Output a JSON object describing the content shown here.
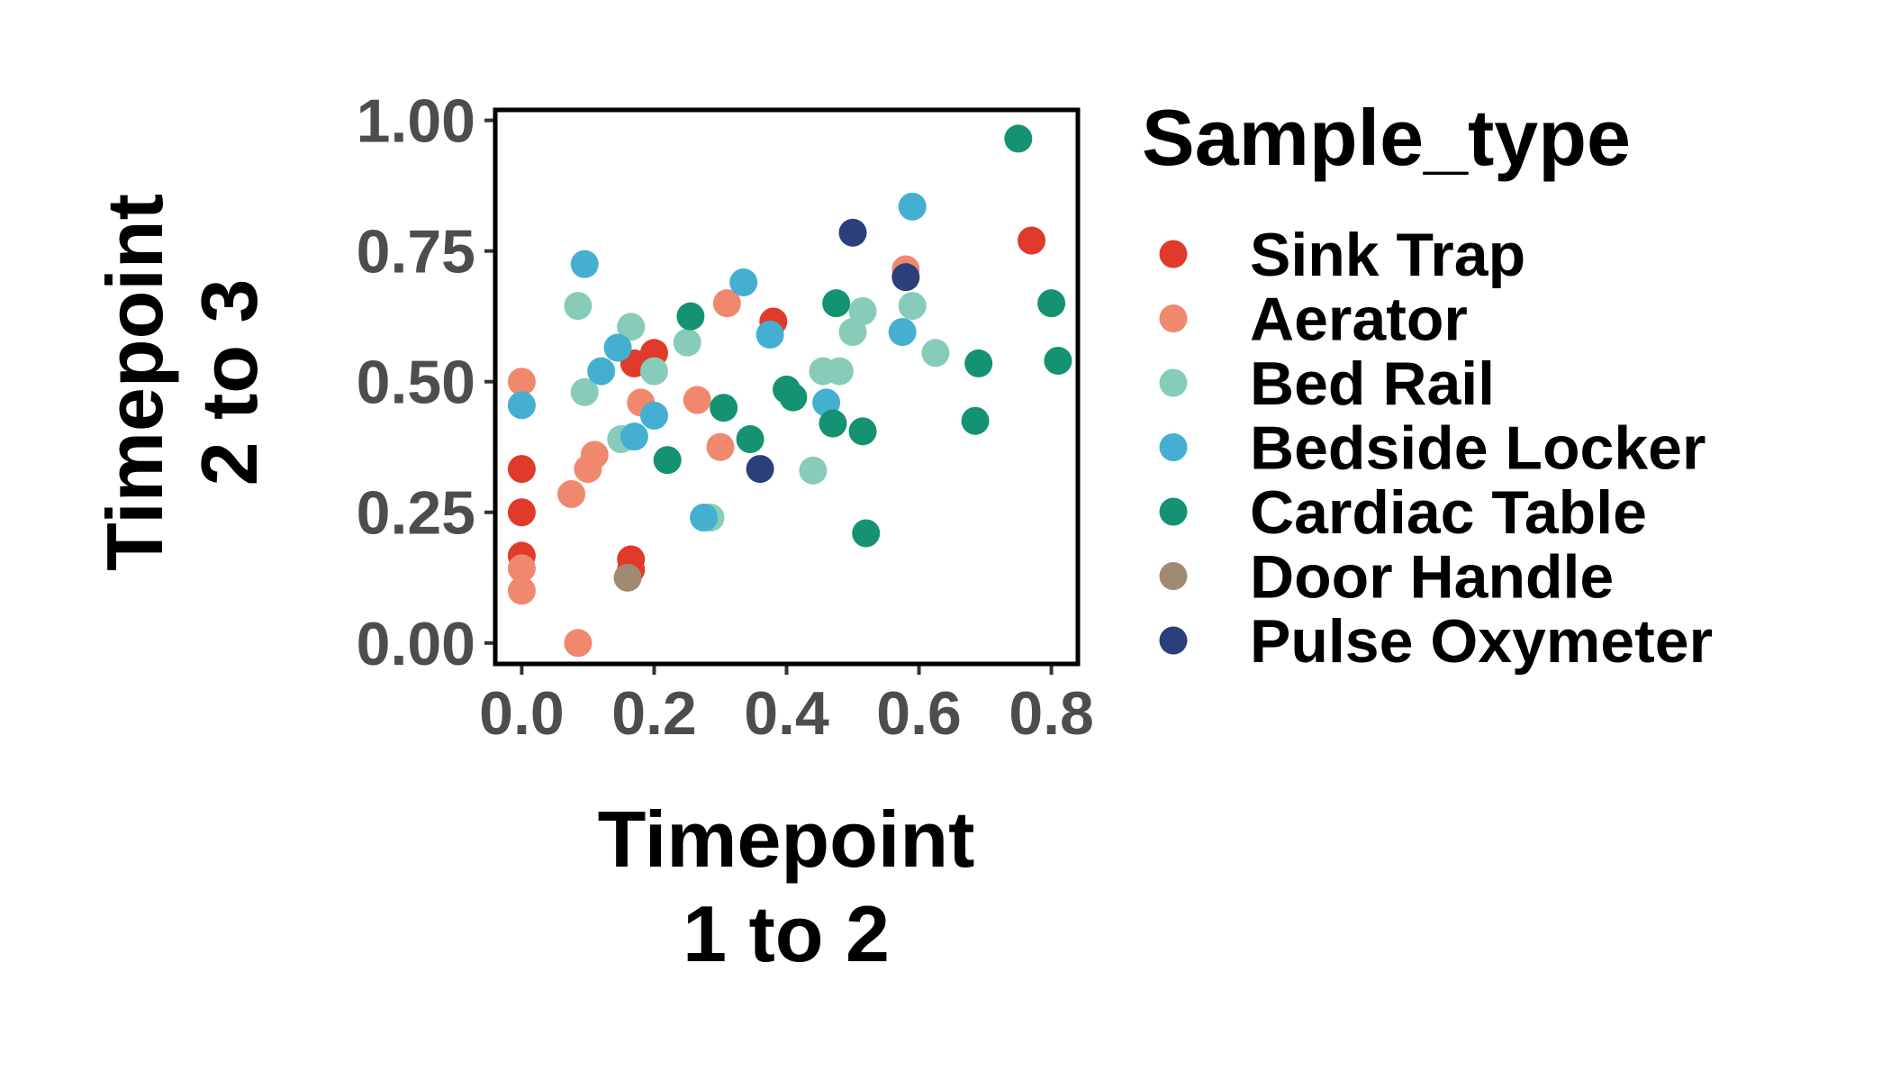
{
  "chart_data": {
    "type": "scatter",
    "title": "",
    "xlabel": [
      "Timepoint",
      "1 to 2"
    ],
    "ylabel": [
      "Timepoint",
      "2 to 3"
    ],
    "xlim": [
      -0.04,
      0.84
    ],
    "ylim": [
      -0.04,
      1.02
    ],
    "x_ticks": [
      0.0,
      0.2,
      0.4,
      0.6,
      0.8
    ],
    "x_tick_labels": [
      "0.0",
      "0.2",
      "0.4",
      "0.6",
      "0.8"
    ],
    "y_ticks": [
      0.0,
      0.25,
      0.5,
      0.75,
      1.0
    ],
    "y_tick_labels": [
      "0.00",
      "0.25",
      "0.50",
      "0.75",
      "1.00"
    ],
    "grid": false,
    "legend": {
      "title": "Sample_type",
      "position": "right"
    },
    "series": [
      {
        "name": "Sink Trap",
        "color": "#E03A2A",
        "points": [
          [
            0.0,
            0.333
          ],
          [
            0.0,
            0.25
          ],
          [
            0.0,
            0.167
          ],
          [
            0.17,
            0.535
          ],
          [
            0.2,
            0.555
          ],
          [
            0.38,
            0.615
          ],
          [
            0.165,
            0.16
          ],
          [
            0.165,
            0.14
          ],
          [
            0.77,
            0.77
          ]
        ]
      },
      {
        "name": "Aerator",
        "color": "#F0886E",
        "points": [
          [
            0.0,
            0.5
          ],
          [
            0.0,
            0.143
          ],
          [
            0.0,
            0.1
          ],
          [
            0.085,
            0.0
          ],
          [
            0.075,
            0.285
          ],
          [
            0.1,
            0.333
          ],
          [
            0.11,
            0.36
          ],
          [
            0.18,
            0.46
          ],
          [
            0.265,
            0.465
          ],
          [
            0.3,
            0.375
          ],
          [
            0.31,
            0.65
          ],
          [
            0.58,
            0.715
          ]
        ]
      },
      {
        "name": "Bed Rail",
        "color": "#86CCB8",
        "points": [
          [
            0.085,
            0.645
          ],
          [
            0.095,
            0.48
          ],
          [
            0.15,
            0.39
          ],
          [
            0.165,
            0.605
          ],
          [
            0.2,
            0.52
          ],
          [
            0.25,
            0.575
          ],
          [
            0.285,
            0.24
          ],
          [
            0.44,
            0.33
          ],
          [
            0.455,
            0.52
          ],
          [
            0.48,
            0.52
          ],
          [
            0.5,
            0.595
          ],
          [
            0.515,
            0.635
          ],
          [
            0.59,
            0.645
          ],
          [
            0.625,
            0.555
          ]
        ]
      },
      {
        "name": "Bedside Locker",
        "color": "#44AFD1",
        "points": [
          [
            0.0,
            0.455
          ],
          [
            0.095,
            0.725
          ],
          [
            0.12,
            0.52
          ],
          [
            0.145,
            0.565
          ],
          [
            0.17,
            0.395
          ],
          [
            0.2,
            0.435
          ],
          [
            0.275,
            0.24
          ],
          [
            0.335,
            0.69
          ],
          [
            0.375,
            0.59
          ],
          [
            0.46,
            0.46
          ],
          [
            0.575,
            0.595
          ],
          [
            0.59,
            0.835
          ]
        ]
      },
      {
        "name": "Cardiac Table",
        "color": "#159272",
        "points": [
          [
            0.22,
            0.35
          ],
          [
            0.255,
            0.625
          ],
          [
            0.305,
            0.45
          ],
          [
            0.345,
            0.39
          ],
          [
            0.4,
            0.485
          ],
          [
            0.41,
            0.47
          ],
          [
            0.47,
            0.42
          ],
          [
            0.475,
            0.65
          ],
          [
            0.515,
            0.405
          ],
          [
            0.52,
            0.21
          ],
          [
            0.685,
            0.425
          ],
          [
            0.69,
            0.535
          ],
          [
            0.75,
            0.965
          ],
          [
            0.8,
            0.65
          ],
          [
            0.81,
            0.54
          ]
        ]
      },
      {
        "name": "Door Handle",
        "color": "#A08A72",
        "points": [
          [
            0.16,
            0.125
          ]
        ]
      },
      {
        "name": "Pulse Oxymeter",
        "color": "#2B3F7A",
        "points": [
          [
            0.36,
            0.333
          ],
          [
            0.5,
            0.785
          ],
          [
            0.58,
            0.7
          ]
        ]
      }
    ]
  }
}
